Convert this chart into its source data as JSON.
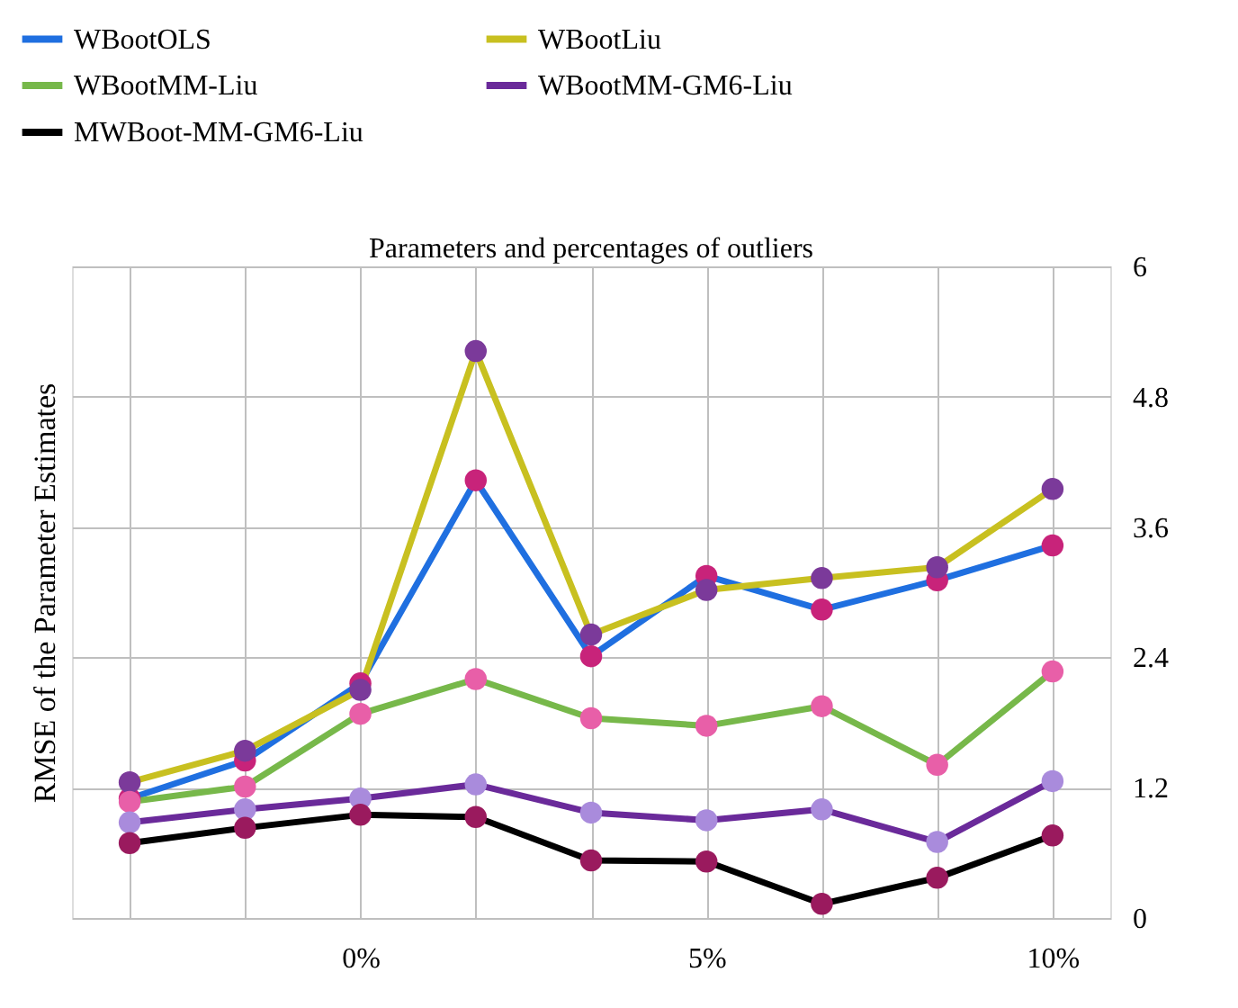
{
  "chart_data": {
    "type": "line",
    "title": "Parameters  and percentages of outliers",
    "ylabel": "RMSE of the Parameter Estimates",
    "categories": [
      null,
      null,
      "0%",
      null,
      null,
      "5%",
      null,
      null,
      "10%"
    ],
    "ylim": [
      0,
      6
    ],
    "yticks": [
      0,
      1.2,
      2.4,
      3.6,
      4.8,
      6
    ],
    "grid": true,
    "legend": "top",
    "marker": "circle",
    "line_style": "solid",
    "series": [
      {
        "name": "WBootOLS",
        "color": "#1f6fe0",
        "colors": [
          "#c8237a",
          "#c8237a",
          "#c8237a",
          "#c8237a",
          "#c8237a",
          "#c8237a",
          "#c8237a",
          "#c8237a",
          "#c8237a"
        ],
        "values": [
          1.1,
          1.45,
          2.16,
          4.03,
          2.41,
          3.15,
          2.84,
          3.11,
          3.43
        ]
      },
      {
        "name": "WBootLiu",
        "color": "#c8c020",
        "colors": [
          "#7b3a9a",
          "#7b3a9a",
          "#7b3a9a",
          "#7b3a9a",
          "#7b3a9a",
          "#7b3a9a",
          "#7b3a9a",
          "#7b3a9a",
          "#7b3a9a"
        ],
        "values": [
          1.25,
          1.54,
          2.1,
          5.22,
          2.61,
          3.02,
          3.13,
          3.23,
          3.95
        ]
      },
      {
        "name": "WBootMM-Liu",
        "color": "#77b84a",
        "colors": [
          "#e85fa8",
          "#e85fa8",
          "#e85fa8",
          "#e85fa8",
          "#e85fa8",
          "#e85fa8",
          "#e85fa8",
          "#e85fa8",
          "#e85fa8"
        ],
        "values": [
          1.07,
          1.21,
          1.88,
          2.2,
          1.84,
          1.77,
          1.95,
          1.41,
          2.27
        ]
      },
      {
        "name": "WBootMM-GM6-Liu",
        "color": "#6a2a9a",
        "colors": [
          "#a98bdc",
          "#a98bdc",
          "#a98bdc",
          "#a98bdc",
          "#a98bdc",
          "#a98bdc",
          "#a98bdc",
          "#a98bdc",
          "#a98bdc"
        ],
        "values": [
          0.88,
          1.0,
          1.1,
          1.23,
          0.97,
          0.9,
          1.0,
          0.7,
          1.26
        ]
      },
      {
        "name": "MWBoot-MM-GM6-Liu",
        "color": "#000000",
        "colors": [
          "#9a1a5e",
          "#9a1a5e",
          "#9a1a5e",
          "#9a1a5e",
          "#9a1a5e",
          "#9a1a5e",
          "#9a1a5e",
          "#9a1a5e",
          "#9a1a5e"
        ],
        "values": [
          0.69,
          0.83,
          0.95,
          0.93,
          0.53,
          0.52,
          0.13,
          0.37,
          0.76
        ]
      }
    ]
  }
}
